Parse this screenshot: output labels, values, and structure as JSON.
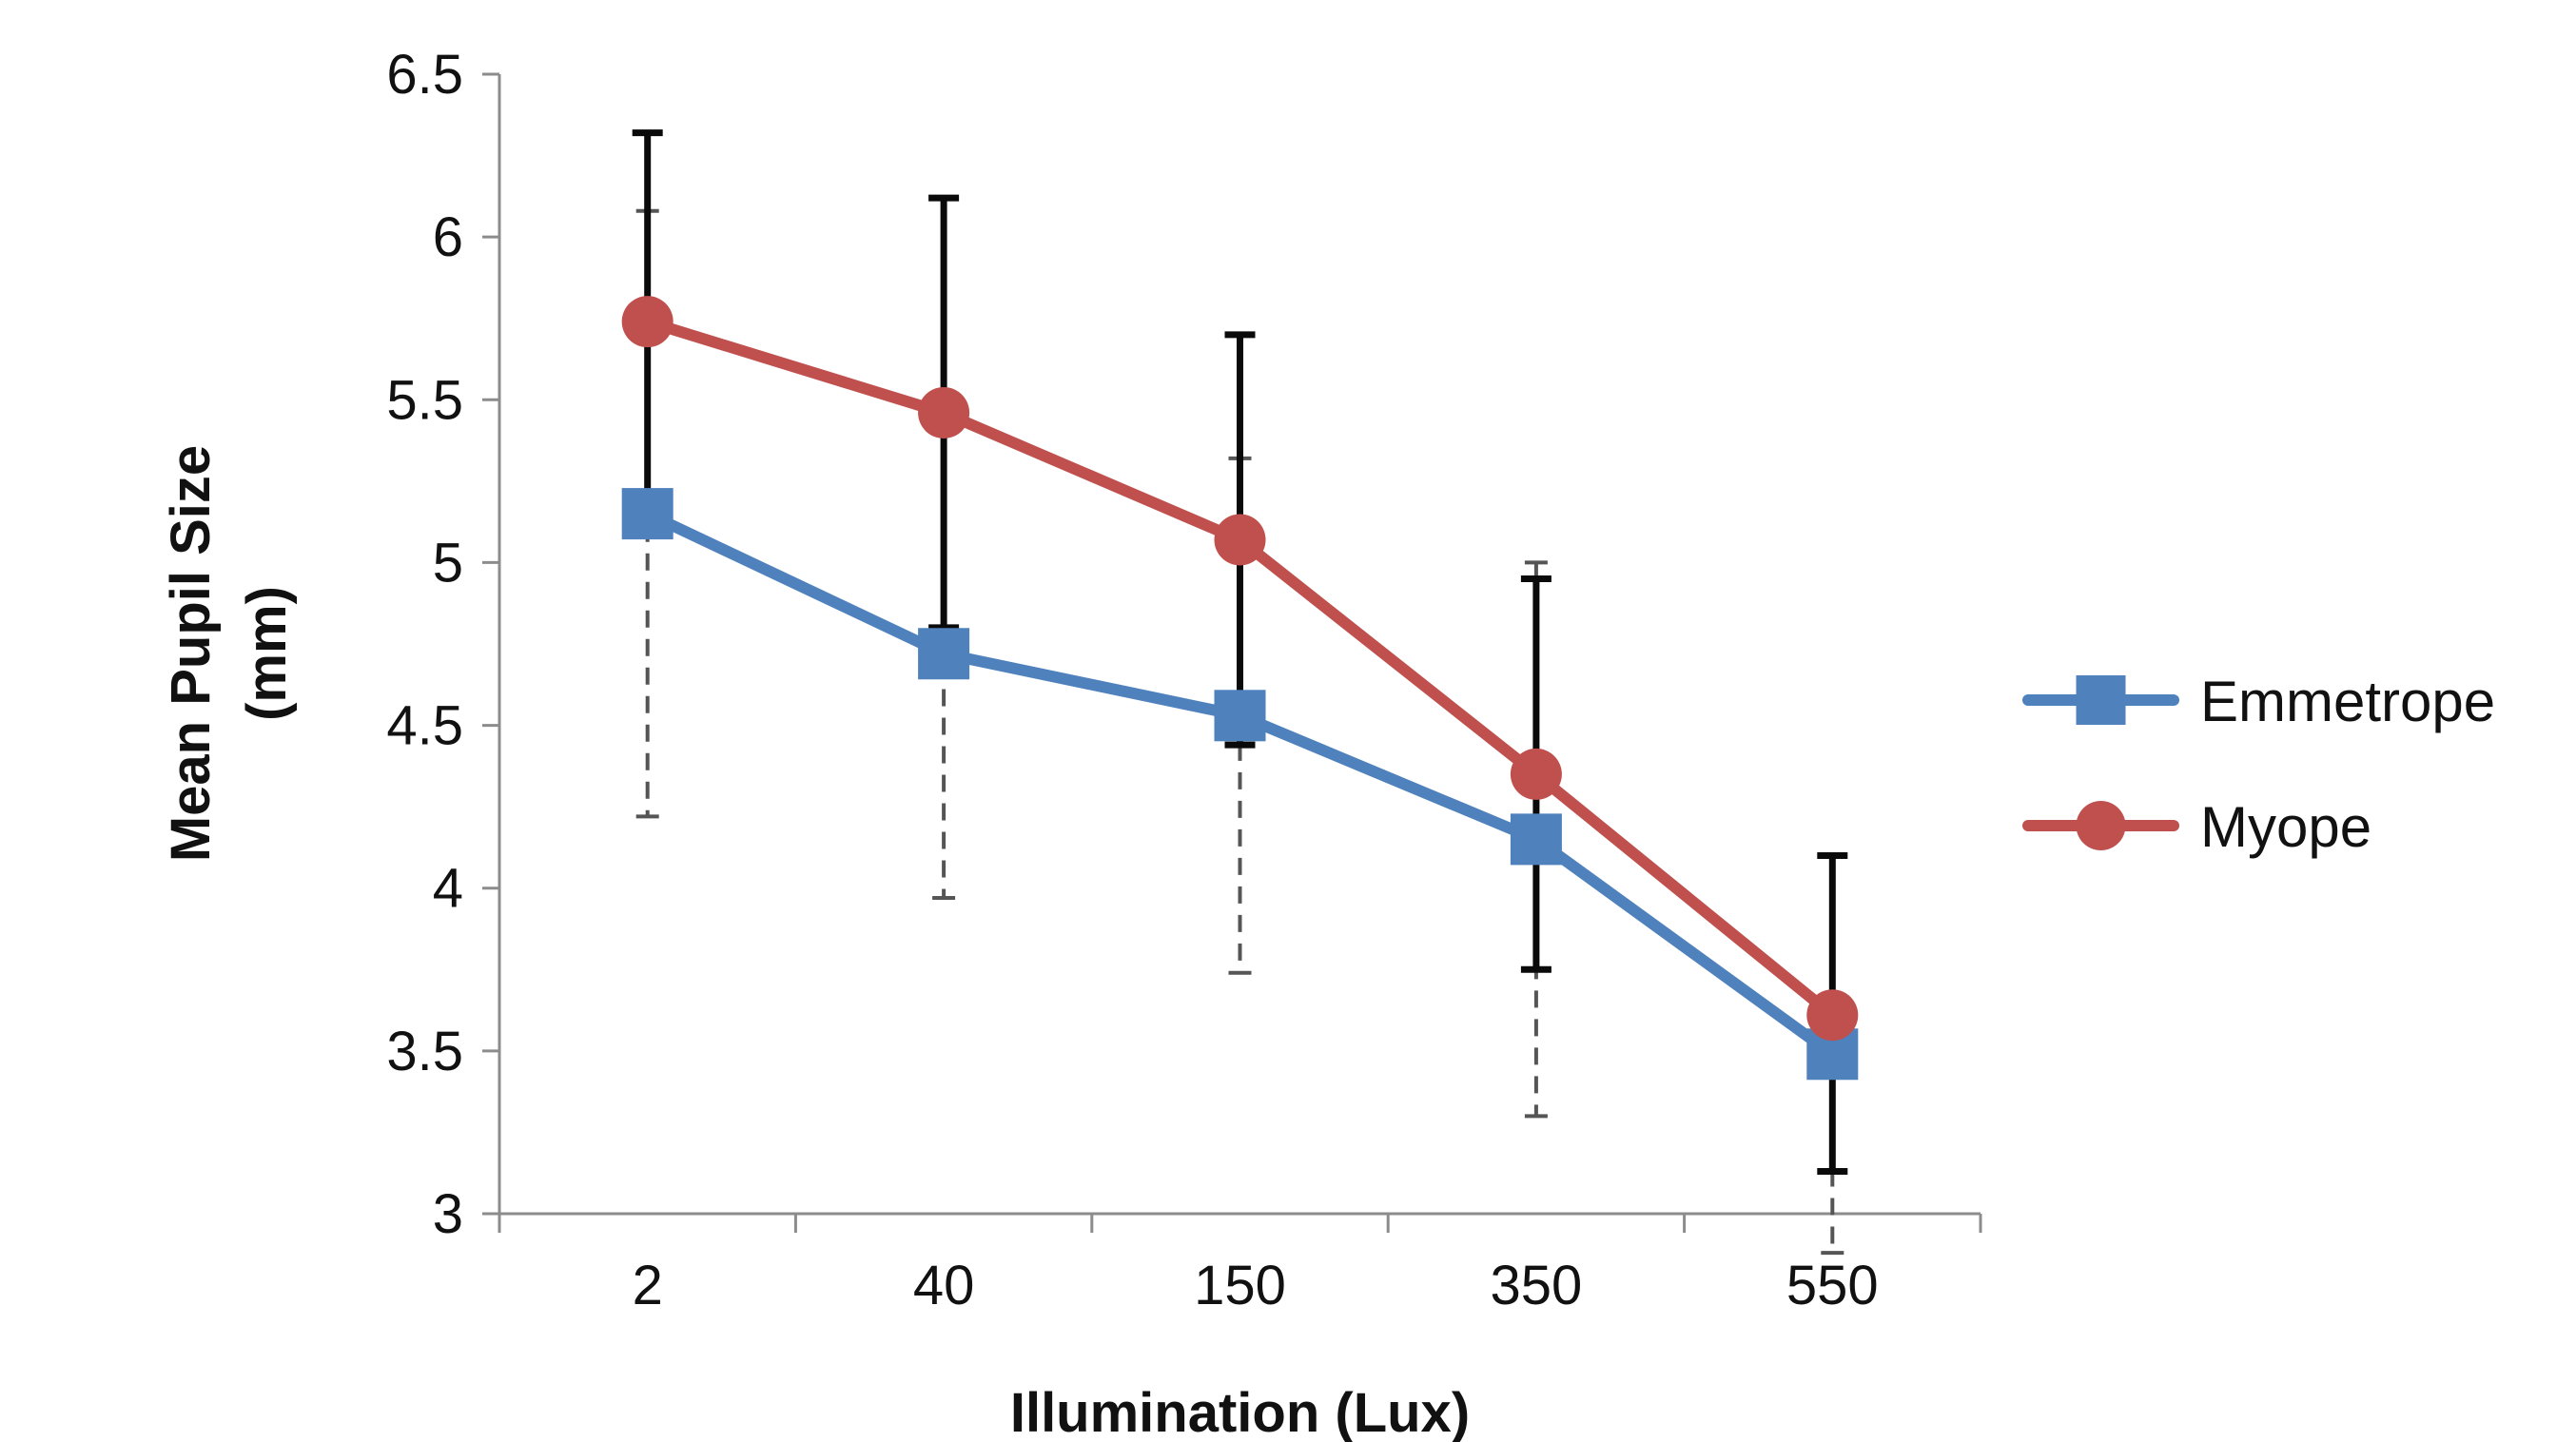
{
  "chart_data": {
    "type": "line",
    "categories": [
      "2",
      "40",
      "150",
      "350",
      "550"
    ],
    "xlabel": "Illumination (Lux)",
    "ylabel_lines": [
      "Mean Pupil Size",
      "(mm)"
    ],
    "ylim": [
      3,
      6.5
    ],
    "yticks": [
      "3",
      "3.5",
      "4",
      "4.5",
      "5",
      "5.5",
      "6",
      "6.5"
    ],
    "legend_position": "right",
    "series": [
      {
        "name": "Emmetrope",
        "marker": "square",
        "color": "#4f81bd",
        "errorbar_style": "dashed-gray",
        "values": [
          5.15,
          4.72,
          4.53,
          4.15,
          3.49
        ],
        "error_upper": [
          6.08,
          5.4,
          5.32,
          5.0,
          4.1
        ],
        "error_lower": [
          4.22,
          3.97,
          3.74,
          3.3,
          2.88
        ]
      },
      {
        "name": "Myope",
        "marker": "circle",
        "color": "#c0504d",
        "errorbar_style": "solid-black",
        "values": [
          5.74,
          5.46,
          5.07,
          4.35,
          3.61
        ],
        "error_upper": [
          6.32,
          6.12,
          5.7,
          4.95,
          4.1
        ],
        "error_lower": [
          5.16,
          4.8,
          4.44,
          3.75,
          3.13
        ]
      }
    ]
  }
}
